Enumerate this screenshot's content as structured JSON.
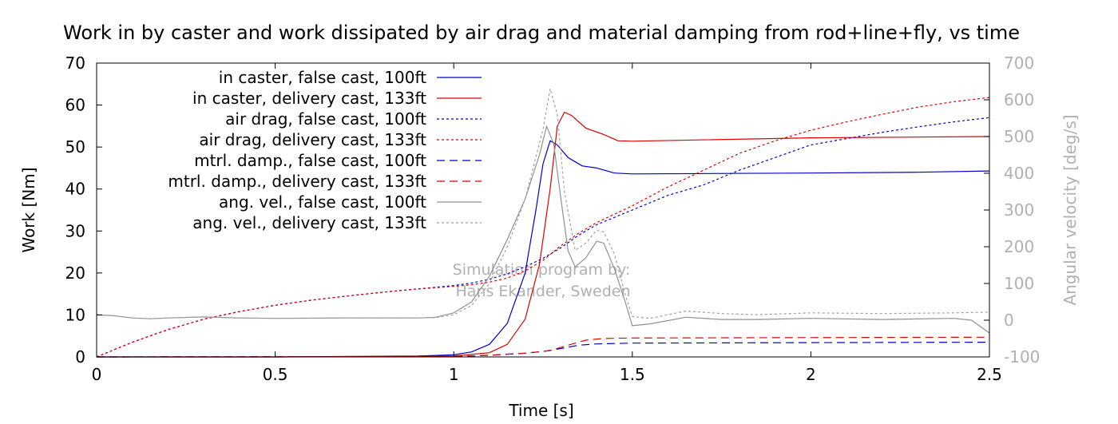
{
  "chart_data": {
    "type": "line",
    "title": "Work in by caster and work dissipated by air drag and material damping from rod+line+fly, vs time",
    "xlabel": "Time [s]",
    "ylabel": "Work [Nm]",
    "y2label": "Angular velocity [deg/s]",
    "xlim": [
      0,
      2.5
    ],
    "ylim": [
      0,
      70
    ],
    "y2lim": [
      -100,
      700
    ],
    "xticks": [
      0,
      0.5,
      1,
      1.5,
      2,
      2.5
    ],
    "xtick_labels": [
      "0",
      "0.5",
      "1",
      "1.5",
      "2",
      "2.5"
    ],
    "yticks": [
      0,
      10,
      20,
      30,
      40,
      50,
      60,
      70
    ],
    "ytick_labels": [
      "0",
      "10",
      "20",
      "30",
      "40",
      "50",
      "60",
      "70"
    ],
    "y2ticks": [
      -100,
      0,
      100,
      200,
      300,
      400,
      500,
      600,
      700
    ],
    "y2tick_labels": [
      "-100",
      "0",
      "100",
      "200",
      "300",
      "400",
      "500",
      "600",
      "700"
    ],
    "grid": false,
    "legend_position": "top-left",
    "watermark": [
      "Simulation program by:",
      "Hans Ekander, Sweden"
    ],
    "series": [
      {
        "name": "in caster, false cast, 100ft",
        "axis": "y1",
        "color": "#0000cc",
        "dash": "solid",
        "points": [
          [
            0,
            0
          ],
          [
            0.5,
            0
          ],
          [
            0.9,
            0.2
          ],
          [
            1.0,
            0.5
          ],
          [
            1.05,
            1.2
          ],
          [
            1.1,
            3
          ],
          [
            1.15,
            8
          ],
          [
            1.2,
            20
          ],
          [
            1.23,
            35
          ],
          [
            1.25,
            46
          ],
          [
            1.27,
            51.5
          ],
          [
            1.29,
            50.5
          ],
          [
            1.32,
            47.5
          ],
          [
            1.36,
            45.5
          ],
          [
            1.4,
            45
          ],
          [
            1.45,
            43.8
          ],
          [
            1.5,
            43.6
          ],
          [
            2.0,
            43.8
          ],
          [
            2.3,
            44
          ],
          [
            2.5,
            44.3
          ]
        ]
      },
      {
        "name": "in caster, delivery cast, 133ft",
        "axis": "y1",
        "color": "#dd0000",
        "dash": "solid",
        "points": [
          [
            0,
            0
          ],
          [
            0.5,
            0
          ],
          [
            0.9,
            0.1
          ],
          [
            1.0,
            0.2
          ],
          [
            1.1,
            1
          ],
          [
            1.15,
            3
          ],
          [
            1.2,
            9
          ],
          [
            1.24,
            22
          ],
          [
            1.27,
            40
          ],
          [
            1.29,
            55
          ],
          [
            1.31,
            58.3
          ],
          [
            1.33,
            57.5
          ],
          [
            1.37,
            54.5
          ],
          [
            1.42,
            53
          ],
          [
            1.46,
            51.5
          ],
          [
            1.5,
            51.4
          ],
          [
            2.0,
            52.2
          ],
          [
            2.5,
            52.5
          ]
        ]
      },
      {
        "name": "air drag, false cast, 100ft",
        "axis": "y1",
        "color": "#0000cc",
        "dash": "3 3",
        "points": [
          [
            0,
            0
          ],
          [
            0.1,
            3.5
          ],
          [
            0.2,
            6.5
          ],
          [
            0.3,
            9
          ],
          [
            0.4,
            10.8
          ],
          [
            0.5,
            12.3
          ],
          [
            0.6,
            13.5
          ],
          [
            0.7,
            14.5
          ],
          [
            0.8,
            15.4
          ],
          [
            0.9,
            16.2
          ],
          [
            1.0,
            17
          ],
          [
            1.05,
            17.6
          ],
          [
            1.1,
            18.5
          ],
          [
            1.15,
            19.8
          ],
          [
            1.2,
            21.5
          ],
          [
            1.25,
            23.5
          ],
          [
            1.3,
            26
          ],
          [
            1.35,
            29
          ],
          [
            1.4,
            31.5
          ],
          [
            1.5,
            35
          ],
          [
            1.6,
            38.5
          ],
          [
            1.7,
            41
          ],
          [
            1.8,
            44.5
          ],
          [
            1.9,
            47.5
          ],
          [
            2.0,
            50.5
          ],
          [
            2.1,
            52
          ],
          [
            2.2,
            53.5
          ],
          [
            2.3,
            54.8
          ],
          [
            2.4,
            56
          ],
          [
            2.5,
            57
          ]
        ]
      },
      {
        "name": "air drag, delivery cast, 133ft",
        "axis": "y1",
        "color": "#dd0000",
        "dash": "3 3",
        "points": [
          [
            0,
            0
          ],
          [
            0.1,
            3.5
          ],
          [
            0.2,
            6.5
          ],
          [
            0.3,
            9
          ],
          [
            0.4,
            10.8
          ],
          [
            0.5,
            12.3
          ],
          [
            0.6,
            13.5
          ],
          [
            0.7,
            14.5
          ],
          [
            0.8,
            15.4
          ],
          [
            0.9,
            16.2
          ],
          [
            1.0,
            16.8
          ],
          [
            1.05,
            17.2
          ],
          [
            1.1,
            17.8
          ],
          [
            1.15,
            18.8
          ],
          [
            1.2,
            20.5
          ],
          [
            1.25,
            23
          ],
          [
            1.3,
            26.5
          ],
          [
            1.35,
            29.5
          ],
          [
            1.4,
            32
          ],
          [
            1.5,
            36
          ],
          [
            1.6,
            40.5
          ],
          [
            1.7,
            44.5
          ],
          [
            1.8,
            48.5
          ],
          [
            1.9,
            51.5
          ],
          [
            2.0,
            54
          ],
          [
            2.1,
            56
          ],
          [
            2.2,
            57.8
          ],
          [
            2.3,
            59.5
          ],
          [
            2.4,
            60.8
          ],
          [
            2.5,
            61.8
          ]
        ]
      },
      {
        "name": "mtrl. damp., false cast, 100ft",
        "axis": "y1",
        "color": "#0000cc",
        "dash": "10 6",
        "points": [
          [
            0,
            0
          ],
          [
            1.0,
            0.1
          ],
          [
            1.1,
            0.4
          ],
          [
            1.2,
            0.9
          ],
          [
            1.25,
            1.3
          ],
          [
            1.3,
            2
          ],
          [
            1.35,
            2.8
          ],
          [
            1.4,
            3.1
          ],
          [
            1.5,
            3.3
          ],
          [
            2.0,
            3.4
          ],
          [
            2.5,
            3.5
          ]
        ]
      },
      {
        "name": "mtrl. damp., delivery cast, 133ft",
        "axis": "y1",
        "color": "#dd0000",
        "dash": "10 6",
        "points": [
          [
            0,
            0
          ],
          [
            1.0,
            0.1
          ],
          [
            1.1,
            0.4
          ],
          [
            1.2,
            0.9
          ],
          [
            1.27,
            1.5
          ],
          [
            1.32,
            2.8
          ],
          [
            1.37,
            4
          ],
          [
            1.42,
            4.4
          ],
          [
            1.5,
            4.5
          ],
          [
            2.0,
            4.6
          ],
          [
            2.5,
            4.7
          ]
        ]
      },
      {
        "name": "ang. vel., false cast, 100ft",
        "axis": "y2",
        "color": "#909090",
        "dash": "solid",
        "points": [
          [
            0,
            15
          ],
          [
            0.05,
            12
          ],
          [
            0.1,
            6
          ],
          [
            0.15,
            4
          ],
          [
            0.2,
            6
          ],
          [
            0.3,
            9
          ],
          [
            0.4,
            6
          ],
          [
            0.5,
            5
          ],
          [
            0.7,
            6
          ],
          [
            0.9,
            6
          ],
          [
            0.95,
            8
          ],
          [
            1.0,
            20
          ],
          [
            1.05,
            50
          ],
          [
            1.1,
            120
          ],
          [
            1.15,
            220
          ],
          [
            1.2,
            330
          ],
          [
            1.24,
            450
          ],
          [
            1.26,
            528
          ],
          [
            1.28,
            480
          ],
          [
            1.3,
            330
          ],
          [
            1.32,
            190
          ],
          [
            1.34,
            145
          ],
          [
            1.37,
            170
          ],
          [
            1.4,
            215
          ],
          [
            1.42,
            210
          ],
          [
            1.45,
            140
          ],
          [
            1.48,
            50
          ],
          [
            1.5,
            -15
          ],
          [
            1.55,
            -10
          ],
          [
            1.65,
            8
          ],
          [
            1.75,
            2
          ],
          [
            1.85,
            2
          ],
          [
            2.0,
            5
          ],
          [
            2.2,
            2
          ],
          [
            2.4,
            5
          ],
          [
            2.45,
            0
          ],
          [
            2.5,
            -35
          ]
        ]
      },
      {
        "name": "ang. vel., delivery cast, 133ft",
        "axis": "y2",
        "color": "#a0a0a0",
        "dash": "3 3",
        "points": [
          [
            0,
            15
          ],
          [
            0.05,
            12
          ],
          [
            0.1,
            6
          ],
          [
            0.15,
            4
          ],
          [
            0.2,
            6
          ],
          [
            0.3,
            9
          ],
          [
            0.4,
            6
          ],
          [
            0.5,
            5
          ],
          [
            0.7,
            6
          ],
          [
            0.9,
            6
          ],
          [
            0.95,
            7
          ],
          [
            1.0,
            15
          ],
          [
            1.05,
            40
          ],
          [
            1.1,
            100
          ],
          [
            1.15,
            200
          ],
          [
            1.2,
            330
          ],
          [
            1.25,
            520
          ],
          [
            1.27,
            630
          ],
          [
            1.29,
            560
          ],
          [
            1.31,
            350
          ],
          [
            1.34,
            190
          ],
          [
            1.37,
            210
          ],
          [
            1.4,
            245
          ],
          [
            1.42,
            240
          ],
          [
            1.45,
            180
          ],
          [
            1.48,
            70
          ],
          [
            1.5,
            10
          ],
          [
            1.55,
            5
          ],
          [
            1.65,
            25
          ],
          [
            1.75,
            18
          ],
          [
            1.85,
            15
          ],
          [
            2.0,
            20
          ],
          [
            2.2,
            18
          ],
          [
            2.4,
            20
          ],
          [
            2.5,
            22
          ]
        ]
      }
    ]
  }
}
